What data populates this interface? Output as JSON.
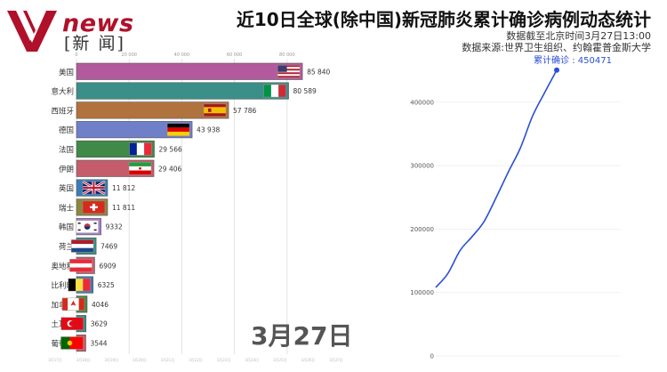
{
  "header": {
    "logo_text": "news",
    "logo_cn": "[新 闻]",
    "title": "近10日全球(除中国)新冠肺炎累计确诊病例动态统计",
    "date_note": "数据截至北京时间3月27日13:00",
    "source": "数据来源:世界卫生组织、约翰霍普金斯大学"
  },
  "date_label": "3月27日",
  "chart_data": [
    {
      "type": "bar",
      "title": "",
      "categories": [
        "美国",
        "意大利",
        "西班牙",
        "德国",
        "法国",
        "伊朗",
        "英国",
        "瑞士",
        "韩国",
        "荷兰",
        "奥地利",
        "比利时",
        "加拿大",
        "土耳其",
        "葡萄牙"
      ],
      "values": [
        85840,
        80589,
        57786,
        43938,
        29566,
        29406,
        11812,
        11811,
        9332,
        7469,
        6909,
        6325,
        4046,
        3629,
        3544
      ],
      "value_labels": [
        "85 840",
        "80 589",
        "57 786",
        "43 938",
        "29 566",
        "29 406",
        "11 812",
        "11 811",
        "9332",
        "7469",
        "6909",
        "6325",
        "4046",
        "3629",
        "3544"
      ],
      "colors": [
        "#b35a9e",
        "#3a8f88",
        "#b0733e",
        "#6f7fc8",
        "#3f8a48",
        "#c45c6c",
        "#3b7cb8",
        "#8c8740",
        "#a97bcc",
        "#3a8f88",
        "#c45c6c",
        "#3b7cb8",
        "#3f8a48",
        "#3a8f88",
        "#c45c6c"
      ],
      "flags": [
        "us",
        "it",
        "es",
        "de",
        "fr",
        "ir",
        "gb",
        "ch",
        "kr",
        "nl",
        "at",
        "be",
        "ca",
        "tr",
        "pt"
      ],
      "xticks": [
        0,
        20000,
        40000,
        60000,
        80000
      ],
      "xtick_labels": [
        "0",
        "20 000",
        "40 000",
        "60 000",
        "80 000"
      ],
      "xlim": [
        0,
        100000
      ],
      "bottom_ticks": [
        "3月17日",
        "3月18日",
        "3月19日",
        "3月20日",
        "3月21日",
        "3月22日",
        "3月23日",
        "3月24日",
        "3月25日",
        "3月26日",
        "3月27日"
      ]
    },
    {
      "type": "line",
      "title": "",
      "annotation": "累计确诊 : 450471",
      "x": [
        0,
        1,
        2,
        3,
        4,
        5,
        6,
        7,
        8,
        9,
        10
      ],
      "y": [
        108000,
        130000,
        166000,
        188000,
        212000,
        250000,
        290000,
        328000,
        378000,
        415000,
        450471
      ],
      "ylim": [
        0,
        460000
      ],
      "yticks": [
        0,
        100000,
        200000,
        300000,
        400000
      ],
      "ytick_labels": [
        "0",
        "100000",
        "200000",
        "300000",
        "400000"
      ],
      "line_color": "#2a4fd6"
    }
  ]
}
